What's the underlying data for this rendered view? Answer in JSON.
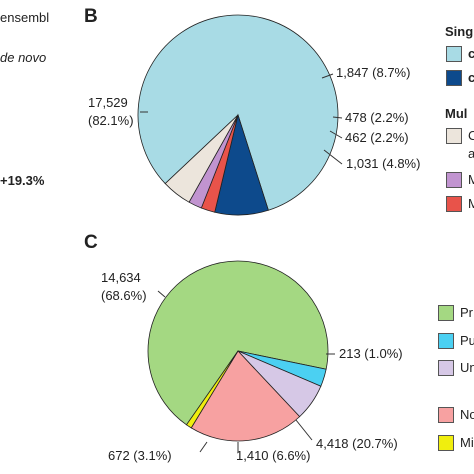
{
  "left_fragment": {
    "line1": "ensembl",
    "line2": "de novo",
    "pct": "+19.3%"
  },
  "panel_b": {
    "letter": "B",
    "legend_title_1": "Sing",
    "legend_b1_text": "c",
    "legend_b2_text": "c",
    "legend_title_2": "Mul",
    "legend_m1_text": "C",
    "legend_m1_text2": "a",
    "legend_m2_text": "M",
    "legend_m3_text": "M"
  },
  "panel_c": {
    "letter": "C",
    "legend": [
      "Pr",
      "Pu",
      "Un",
      "No",
      "Mi"
    ]
  },
  "colors": {
    "light_blue": "#a8dbe5",
    "dark_blue": "#0d4a8c",
    "red": "#e8534a",
    "purple": "#c194d0",
    "beige": "#ece5dc",
    "green": "#a4d882",
    "cyan": "#4bd0f2",
    "lavender": "#d6c8e6",
    "pink": "#f7a1a1",
    "yellow": "#f0ee0e"
  },
  "chart_data": [
    {
      "type": "pie",
      "title": "",
      "slices": [
        {
          "value": 17529,
          "label_line1": "17,529",
          "label_line2": "(82.1%)",
          "color": "#a8dbe5"
        },
        {
          "value": 1847,
          "label_line1": "1,847 (8.7%)",
          "label_line2": "",
          "color": "#0d4a8c"
        },
        {
          "value": 478,
          "label_line1": "478 (2.2%)",
          "label_line2": "",
          "color": "#e8534a"
        },
        {
          "value": 462,
          "label_line1": "462 (2.2%)",
          "label_line2": "",
          "color": "#c194d0"
        },
        {
          "value": 1031,
          "label_line1": "1,031 (4.8%)",
          "label_line2": "",
          "color": "#ece5dc"
        }
      ]
    },
    {
      "type": "pie",
      "title": "",
      "slices": [
        {
          "value": 14634,
          "label_line1": "14,634",
          "label_line2": "(68.6%)",
          "color": "#a4d882"
        },
        {
          "value": 672,
          "label_line1": "672 (3.1%)",
          "label_line2": "",
          "color": "#4bd0f2"
        },
        {
          "value": 1410,
          "label_line1": "1,410 (6.6%)",
          "label_line2": "",
          "color": "#d6c8e6"
        },
        {
          "value": 4418,
          "label_line1": "4,418 (20.7%)",
          "label_line2": "",
          "color": "#f7a1a1"
        },
        {
          "value": 213,
          "label_line1": "213 (1.0%)",
          "label_line2": "",
          "color": "#f0ee0e"
        }
      ]
    }
  ]
}
